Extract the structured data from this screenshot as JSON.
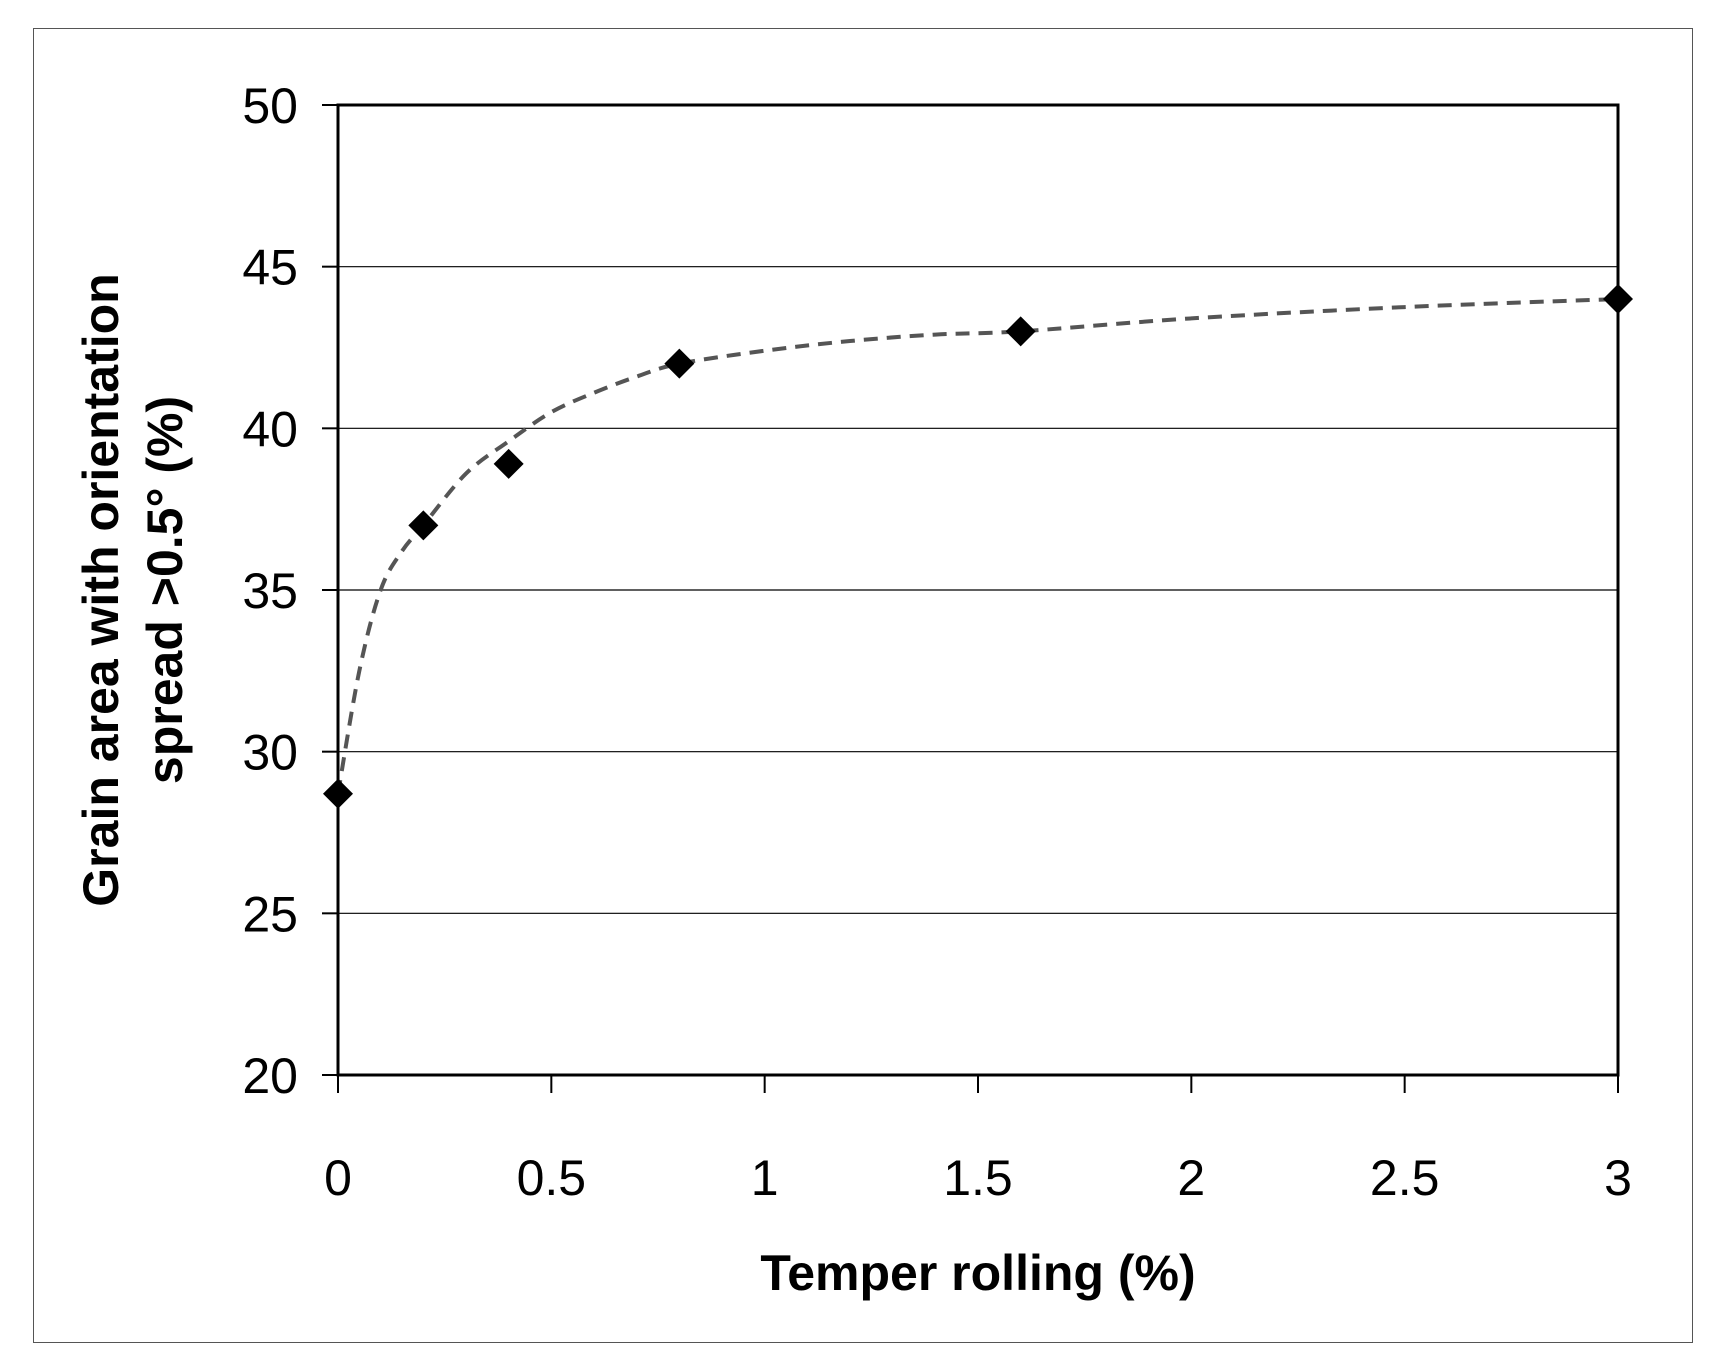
{
  "chart_data": {
    "type": "scatter",
    "title": "",
    "xlabel": "Temper rolling (%)",
    "ylabel_lines": [
      "Grain area with orientation",
      "spread >0.5°    (%)"
    ],
    "xlim": [
      0,
      3
    ],
    "ylim": [
      20,
      50
    ],
    "x_ticks": [
      0,
      0.5,
      1,
      1.5,
      2,
      2.5,
      3
    ],
    "x_tick_labels": [
      "0",
      "0.5",
      "1",
      "1.5",
      "2",
      "2.5",
      "3"
    ],
    "y_ticks": [
      20,
      25,
      30,
      35,
      40,
      45,
      50
    ],
    "y_tick_labels": [
      "20",
      "25",
      "30",
      "35",
      "40",
      "45",
      "50"
    ],
    "grid": "horizontal",
    "series": [
      {
        "marker": "diamond",
        "color": "#000000",
        "points": [
          {
            "x": 0,
            "y": 28.7
          },
          {
            "x": 0.2,
            "y": 37
          },
          {
            "x": 0.4,
            "y": 38.9
          },
          {
            "x": 0.8,
            "y": 42
          },
          {
            "x": 1.6,
            "y": 43
          },
          {
            "x": 3,
            "y": 44
          }
        ]
      }
    ],
    "trendline": {
      "style": "dashed",
      "color": "#555555",
      "points": [
        {
          "x": 0,
          "y": 28.7
        },
        {
          "x": 0.05,
          "y": 32.5
        },
        {
          "x": 0.1,
          "y": 35.0
        },
        {
          "x": 0.15,
          "y": 36.2
        },
        {
          "x": 0.2,
          "y": 37.0
        },
        {
          "x": 0.3,
          "y": 38.6
        },
        {
          "x": 0.4,
          "y": 39.6
        },
        {
          "x": 0.5,
          "y": 40.5
        },
        {
          "x": 0.6,
          "y": 41.1
        },
        {
          "x": 0.7,
          "y": 41.6
        },
        {
          "x": 0.8,
          "y": 42.0
        },
        {
          "x": 1.0,
          "y": 42.4
        },
        {
          "x": 1.2,
          "y": 42.7
        },
        {
          "x": 1.4,
          "y": 42.9
        },
        {
          "x": 1.6,
          "y": 43.0
        },
        {
          "x": 2.0,
          "y": 43.4
        },
        {
          "x": 2.5,
          "y": 43.75
        },
        {
          "x": 3.0,
          "y": 44.0
        }
      ]
    }
  }
}
